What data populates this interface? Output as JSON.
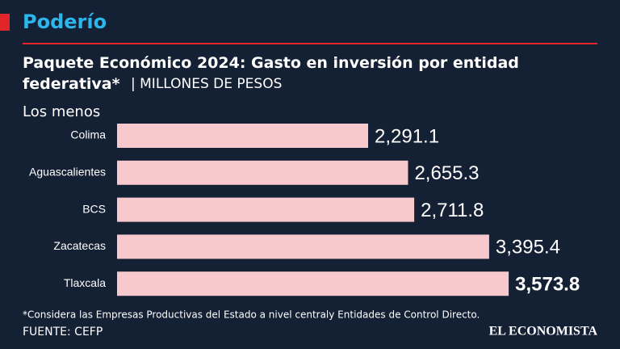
{
  "brand": "Poderío",
  "chart_data": {
    "type": "bar",
    "orientation": "horizontal",
    "title": "Paquete Económico 2024: Gasto en inversión por entidad federativa*",
    "subtitle": "| MILLONES DE PESOS",
    "group_label": "Los menos",
    "categories": [
      "Colima",
      "Aguascalientes",
      "BCS",
      "Zacatecas",
      "Tlaxcala"
    ],
    "values": [
      2291.1,
      2655.3,
      2711.8,
      3395.4,
      3573.8
    ],
    "value_labels": [
      "2,291.1",
      "2,655.3",
      "2,711.8",
      "3,395.4",
      "3,573.8"
    ],
    "color": "#f8c9cc"
  },
  "footnote": "*Considera las Empresas Productivas del Estado a nivel centraly Entidades de Control Directo.",
  "source": "FUENTE: CEFP",
  "logo": "EL ECONOMISTA"
}
